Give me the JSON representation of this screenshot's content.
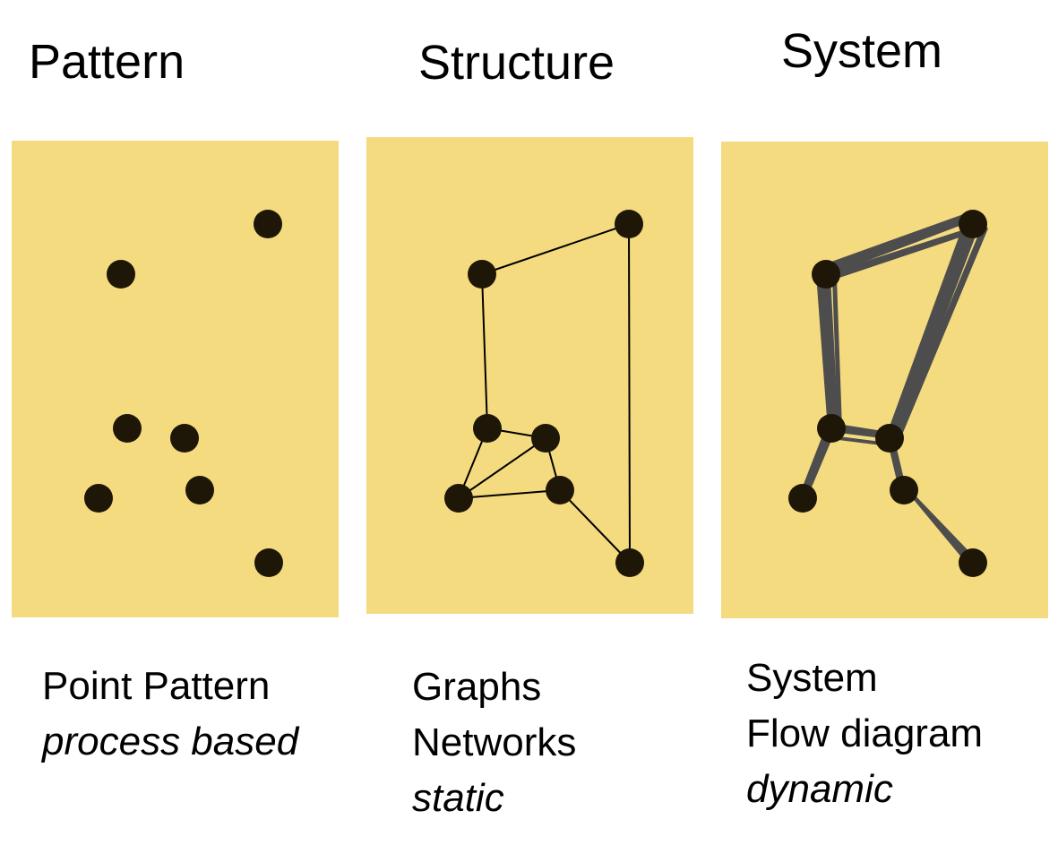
{
  "columns": [
    {
      "title": "Pattern",
      "caption_lines": [
        "Point Pattern"
      ],
      "caption_italic": "process based"
    },
    {
      "title": "Structure",
      "caption_lines": [
        "Graphs",
        "Networks"
      ],
      "caption_italic": "static"
    },
    {
      "title": "System",
      "caption_lines": [
        "System",
        "Flow diagram"
      ],
      "caption_italic": "dynamic"
    }
  ],
  "colors": {
    "panel": "#f5db80",
    "node": "#1e1607",
    "edge": "#000000",
    "flow": "#4d4d4d"
  }
}
